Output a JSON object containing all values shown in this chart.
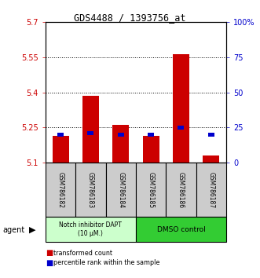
{
  "title": "GDS4488 / 1393756_at",
  "samples": [
    "GSM786182",
    "GSM786183",
    "GSM786184",
    "GSM786185",
    "GSM786186",
    "GSM786187"
  ],
  "red_values": [
    5.215,
    5.385,
    5.26,
    5.215,
    5.565,
    5.13
  ],
  "blue_values_pct": [
    20,
    21,
    20,
    20,
    25,
    20
  ],
  "ylim_left": [
    5.1,
    5.7
  ],
  "ylim_right": [
    0,
    100
  ],
  "yticks_left": [
    5.1,
    5.25,
    5.4,
    5.55,
    5.7
  ],
  "yticks_right": [
    0,
    25,
    50,
    75,
    100
  ],
  "ytick_labels_left": [
    "5.1",
    "5.25",
    "5.4",
    "5.55",
    "5.7"
  ],
  "ytick_labels_right": [
    "0",
    "25",
    "50",
    "75",
    "100%"
  ],
  "bar_bottom": 5.1,
  "red_color": "#cc0000",
  "blue_color": "#0000cc",
  "group1_label": "Notch inhibitor DAPT\n(10 μM.)",
  "group2_label": "DMSO control",
  "group1_color": "#ccffcc",
  "group2_color": "#33cc33",
  "legend_red": "transformed count",
  "legend_blue": "percentile rank within the sample",
  "agent_label": "agent",
  "sample_box_color": "#cccccc",
  "grid_yticks": [
    5.25,
    5.4,
    5.55
  ]
}
